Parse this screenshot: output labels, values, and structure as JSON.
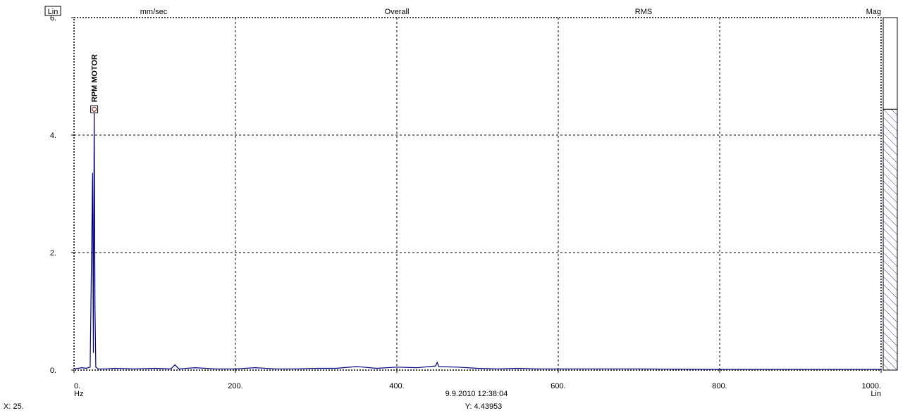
{
  "header": {
    "scale_mode": "Lin",
    "units": "mm/sec",
    "overall": "Overall",
    "detection": "RMS",
    "display": "Mag"
  },
  "footer": {
    "x_unit": "Hz",
    "x_scale": "Lin",
    "timestamp": "9.9.2010 12:38:04",
    "cursor_x": "X: 25.",
    "cursor_y": "Y: 4.43953"
  },
  "marker": {
    "label": "RPM MOTOR",
    "x": 25,
    "y": 4.43953
  },
  "overall_bar": {
    "fraction": 0.26
  },
  "colors": {
    "trace": "#00007f",
    "grid": "#000000",
    "marker": "#7f0000",
    "background": "#ffffff"
  },
  "chart_data": {
    "type": "line",
    "xlabel": "Hz",
    "ylabel": "mm/sec",
    "xlim": [
      0,
      1000
    ],
    "ylim": [
      0,
      6
    ],
    "x_ticks": [
      "0.",
      "200.",
      "400.",
      "600.",
      "800.",
      "1000."
    ],
    "y_ticks": [
      "0.",
      "2.",
      "4.",
      "6."
    ],
    "grid": true,
    "series": [
      {
        "x": [
          0,
          5,
          10,
          15,
          20,
          23,
          24,
          25,
          26,
          27,
          30,
          40,
          50,
          75,
          100,
          120,
          125,
          130,
          150,
          175,
          200,
          225,
          250,
          275,
          300,
          325,
          350,
          375,
          400,
          425,
          448,
          450,
          452,
          475,
          500,
          525,
          550,
          575,
          600,
          700,
          800,
          900,
          1000
        ],
        "y": [
          0.02,
          0.03,
          0.04,
          0.03,
          0.05,
          3.35,
          0.3,
          4.44,
          1.08,
          0.05,
          0.02,
          0.02,
          0.03,
          0.02,
          0.03,
          0.02,
          0.09,
          0.02,
          0.04,
          0.02,
          0.02,
          0.04,
          0.02,
          0.02,
          0.03,
          0.03,
          0.06,
          0.03,
          0.05,
          0.04,
          0.07,
          0.13,
          0.06,
          0.05,
          0.03,
          0.02,
          0.03,
          0.02,
          0.02,
          0.02,
          0.01,
          0.01,
          0.01
        ]
      }
    ]
  }
}
